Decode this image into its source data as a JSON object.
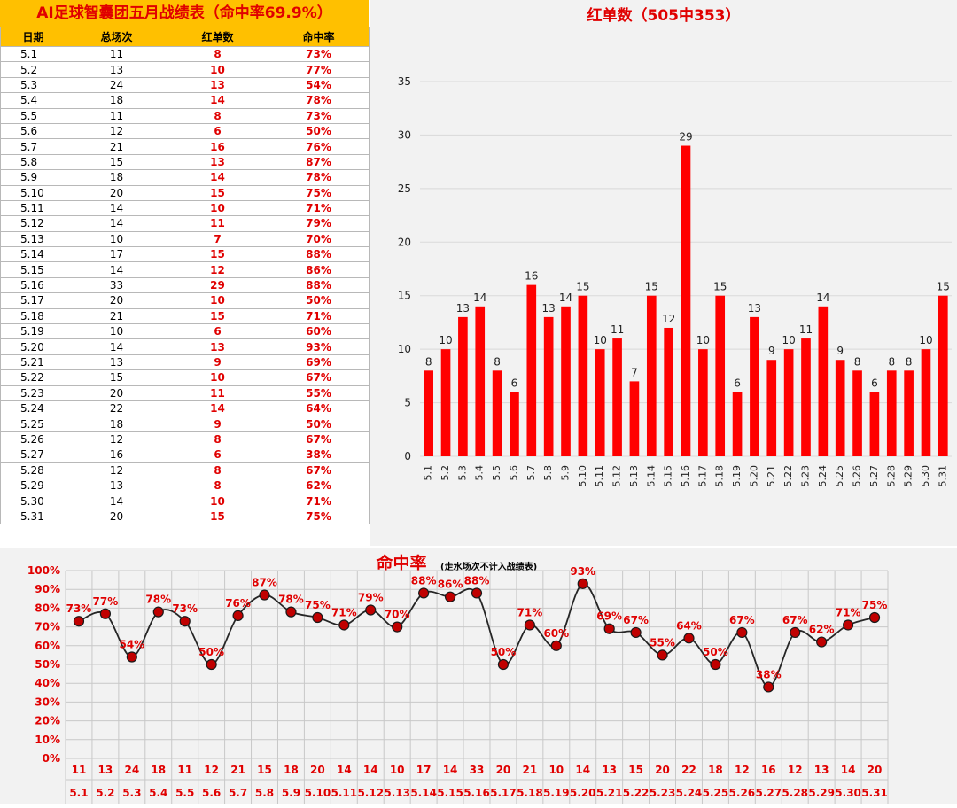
{
  "table": {
    "title": "AI足球智囊团五月战绩表（命中率69.9%）",
    "headers": [
      "日期",
      "总场次",
      "红单数",
      "命中率"
    ],
    "rows": [
      [
        "5.1",
        "11",
        "8",
        "73%"
      ],
      [
        "5.2",
        "13",
        "10",
        "77%"
      ],
      [
        "5.3",
        "24",
        "13",
        "54%"
      ],
      [
        "5.4",
        "18",
        "14",
        "78%"
      ],
      [
        "5.5",
        "11",
        "8",
        "73%"
      ],
      [
        "5.6",
        "12",
        "6",
        "50%"
      ],
      [
        "5.7",
        "21",
        "16",
        "76%"
      ],
      [
        "5.8",
        "15",
        "13",
        "87%"
      ],
      [
        "5.9",
        "18",
        "14",
        "78%"
      ],
      [
        "5.10",
        "20",
        "15",
        "75%"
      ],
      [
        "5.11",
        "14",
        "10",
        "71%"
      ],
      [
        "5.12",
        "14",
        "11",
        "79%"
      ],
      [
        "5.13",
        "10",
        "7",
        "70%"
      ],
      [
        "5.14",
        "17",
        "15",
        "88%"
      ],
      [
        "5.15",
        "14",
        "12",
        "86%"
      ],
      [
        "5.16",
        "33",
        "29",
        "88%"
      ],
      [
        "5.17",
        "20",
        "10",
        "50%"
      ],
      [
        "5.18",
        "21",
        "15",
        "71%"
      ],
      [
        "5.19",
        "10",
        "6",
        "60%"
      ],
      [
        "5.20",
        "14",
        "13",
        "93%"
      ],
      [
        "5.21",
        "13",
        "9",
        "69%"
      ],
      [
        "5.22",
        "15",
        "10",
        "67%"
      ],
      [
        "5.23",
        "20",
        "11",
        "55%"
      ],
      [
        "5.24",
        "22",
        "14",
        "64%"
      ],
      [
        "5.25",
        "18",
        "9",
        "50%"
      ],
      [
        "5.26",
        "12",
        "8",
        "67%"
      ],
      [
        "5.27",
        "16",
        "6",
        "38%"
      ],
      [
        "5.28",
        "12",
        "8",
        "67%"
      ],
      [
        "5.29",
        "13",
        "8",
        "62%"
      ],
      [
        "5.30",
        "14",
        "10",
        "71%"
      ],
      [
        "5.31",
        "20",
        "15",
        "75%"
      ]
    ]
  },
  "colors": {
    "accent_red": "#ff0000",
    "text_red": "#e00000",
    "header_yellow": "#ffc000",
    "marker_fill": "#c00000",
    "panel_bg": "#f2f2f2"
  },
  "chart_data": [
    {
      "type": "bar",
      "title": "红单数（505中353）",
      "categories": [
        "5.1",
        "5.2",
        "5.3",
        "5.4",
        "5.5",
        "5.6",
        "5.7",
        "5.8",
        "5.9",
        "5.10",
        "5.11",
        "5.12",
        "5.13",
        "5.14",
        "5.15",
        "5.16",
        "5.17",
        "5.18",
        "5.19",
        "5.20",
        "5.21",
        "5.22",
        "5.23",
        "5.24",
        "5.25",
        "5.26",
        "5.27",
        "5.28",
        "5.29",
        "5.30",
        "5.31"
      ],
      "values": [
        8,
        10,
        13,
        14,
        8,
        6,
        16,
        13,
        14,
        15,
        10,
        11,
        7,
        15,
        12,
        29,
        10,
        15,
        6,
        13,
        9,
        10,
        11,
        14,
        9,
        8,
        6,
        8,
        8,
        10,
        15
      ],
      "ylim": [
        0,
        35
      ],
      "yticks": [
        0,
        5,
        10,
        15,
        20,
        25,
        30,
        35
      ],
      "grid": true,
      "data_labels": true
    },
    {
      "type": "line",
      "title": "命中率",
      "subtitle": "(走水场次不计入战绩表)",
      "categories": [
        "5.1",
        "5.2",
        "5.3",
        "5.4",
        "5.5",
        "5.6",
        "5.7",
        "5.8",
        "5.9",
        "5.10",
        "5.11",
        "5.12",
        "5.13",
        "5.14",
        "5.15",
        "5.16",
        "5.17",
        "5.18",
        "5.19",
        "5.20",
        "5.21",
        "5.22",
        "5.23",
        "5.24",
        "5.25",
        "5.26",
        "5.27",
        "5.28",
        "5.29",
        "5.30",
        "5.31"
      ],
      "values": [
        73,
        77,
        54,
        78,
        73,
        50,
        76,
        87,
        78,
        75,
        71,
        79,
        70,
        88,
        86,
        88,
        50,
        71,
        60,
        93,
        69,
        67,
        55,
        64,
        50,
        67,
        38,
        67,
        62,
        71,
        75
      ],
      "totals": [
        "11",
        "13",
        "24",
        "18",
        "11",
        "12",
        "21",
        "15",
        "18",
        "20",
        "14",
        "14",
        "10",
        "17",
        "14",
        "33",
        "20",
        "21",
        "10",
        "14",
        "13",
        "15",
        "20",
        "22",
        "18",
        "12",
        "16",
        "12",
        "13",
        "14",
        "20"
      ],
      "ylim": [
        0,
        100
      ],
      "yticks": [
        "0%",
        "10%",
        "20%",
        "30%",
        "40%",
        "50%",
        "60%",
        "70%",
        "80%",
        "90%",
        "100%"
      ],
      "grid": true,
      "data_labels": true
    }
  ]
}
